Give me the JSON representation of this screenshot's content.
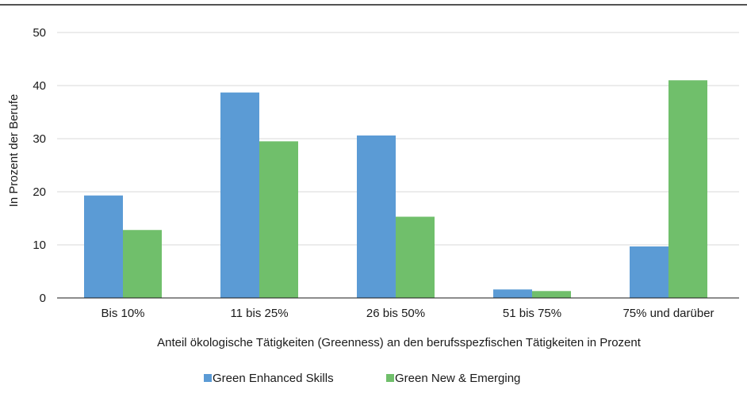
{
  "chart_data": {
    "type": "bar",
    "categories": [
      "Bis  10%",
      "11 bis 25%",
      "26 bis 50%",
      "51 bis 75%",
      "75% und darüber"
    ],
    "series": [
      {
        "name": "Green Enhanced Skills",
        "values": [
          19.3,
          38.7,
          30.6,
          1.6,
          9.7
        ],
        "color": "#5b9bd5"
      },
      {
        "name": "Green New & Emerging",
        "values": [
          12.8,
          29.5,
          15.3,
          1.3,
          41.0
        ],
        "color": "#70bf6b"
      }
    ],
    "xlabel": "Anteil ökologische Tätigkeiten (Greenness) an den berufsspezfischen Tätigkeiten in Prozent",
    "ylabel": "In Prozent der Berufe",
    "ylim": [
      0,
      50
    ],
    "yticks": [
      "0",
      "10",
      "20",
      "30",
      "40",
      "50"
    ],
    "grid": true,
    "legend_position": "bottom"
  }
}
